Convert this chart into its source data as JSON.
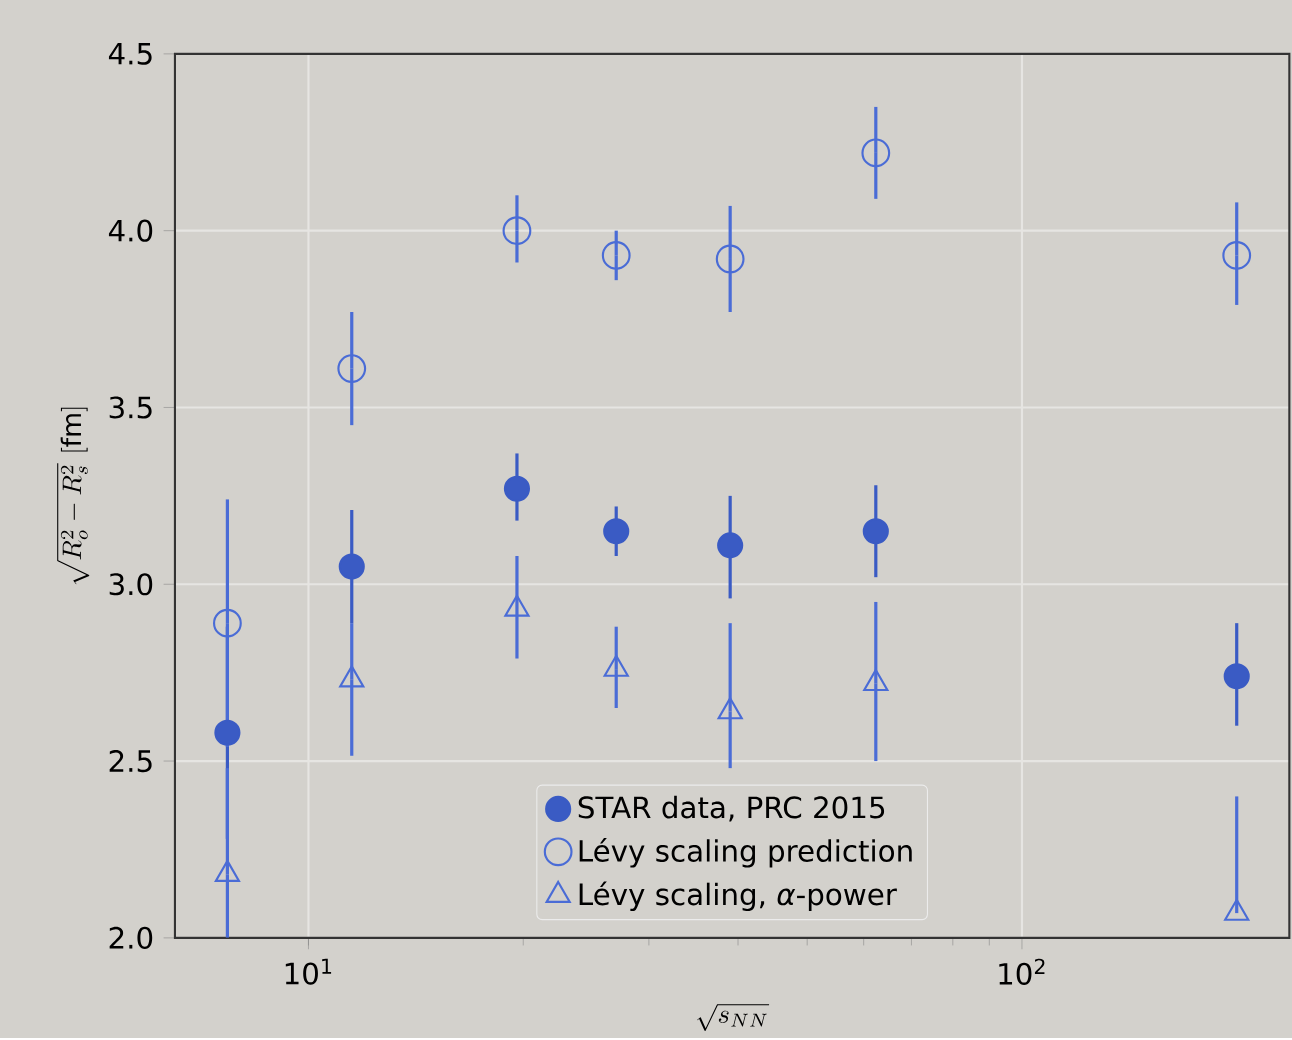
{
  "chart_data": {
    "type": "scatter",
    "xlabel": "\\sqrt{s_{NN}}",
    "ylabel": "\\sqrt{R_o^2 - R_s^2}\\ [\\mathrm{fm}]",
    "x": [
      7.7,
      11.5,
      19.6,
      27,
      39,
      62.4,
      200
    ],
    "log": "x",
    "xlim": [
      6.5,
      237
    ],
    "xticks": [
      {
        "value": 10,
        "label": "10$^{1}$"
      },
      {
        "value": 100,
        "label": "10$^{2}$"
      }
    ],
    "ylim": [
      2.0,
      4.5
    ],
    "yticks": [
      {
        "value": 2.0,
        "label": "2.0"
      },
      {
        "value": 2.5,
        "label": "2.5"
      },
      {
        "value": 3.0,
        "label": "3.0"
      },
      {
        "value": 3.5,
        "label": "3.5"
      },
      {
        "value": 4.0,
        "label": "4.0"
      },
      {
        "value": 4.5,
        "label": "4.5"
      }
    ],
    "grid": true,
    "legend": "bottom",
    "series": [
      {
        "name": "STAR data, PRC 2015",
        "color": "#3a5bc4",
        "marker": "circle",
        "values": [
          2.58,
          3.05,
          3.27,
          3.15,
          3.11,
          3.15,
          2.74
        ],
        "errors": [
          [
            2.28,
            2.88
          ],
          [
            2.89,
            3.21
          ],
          [
            3.18,
            3.37
          ],
          [
            3.08,
            3.22
          ],
          [
            2.96,
            3.25
          ],
          [
            3.02,
            3.28
          ],
          [
            2.6,
            2.89
          ]
        ]
      },
      {
        "name": "Lévy scaling prediction",
        "color": "#4a6cd6",
        "marker": "circle",
        "values": [
          2.89,
          3.61,
          4.0,
          3.93,
          3.92,
          4.22,
          3.93
        ],
        "errors": [
          [
            2.54,
            3.24
          ],
          [
            3.45,
            3.77
          ],
          [
            3.91,
            4.1
          ],
          [
            3.86,
            4.0
          ],
          [
            3.77,
            4.07
          ],
          [
            4.09,
            4.35
          ],
          [
            3.79,
            4.08
          ]
        ]
      },
      {
        "name": "Lévy scaling, *α*-power",
        "color": "#4a6cd6",
        "marker": "triangle",
        "values": [
          2.18,
          2.73,
          2.93,
          2.76,
          2.64,
          2.72,
          2.07
        ],
        "errors": [
          [
            2.0,
            2.48
          ],
          [
            2.515,
            2.89
          ],
          [
            2.79,
            3.08
          ],
          [
            2.65,
            2.88
          ],
          [
            2.48,
            2.89
          ],
          [
            2.5,
            2.95
          ],
          [
            2.07,
            2.4
          ]
        ]
      }
    ]
  }
}
